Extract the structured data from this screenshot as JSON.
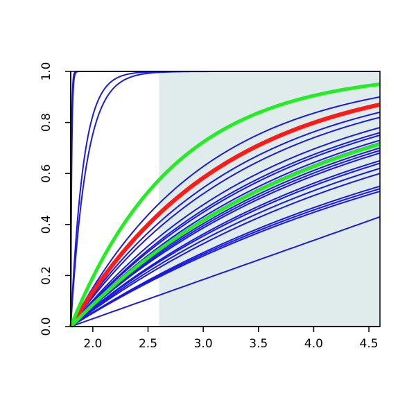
{
  "chart_data": {
    "type": "line",
    "title": "",
    "xlabel": "",
    "ylabel": "",
    "xlim": [
      1.8,
      4.6
    ],
    "ylim": [
      0,
      1
    ],
    "x_ticks": [
      2.0,
      2.5,
      3.0,
      3.5,
      4.0,
      4.5
    ],
    "y_ticks": [
      0.0,
      0.2,
      0.4,
      0.6,
      0.8,
      1.0
    ],
    "x_tick_labels": [
      "2.0",
      "2.5",
      "3.0",
      "3.5",
      "4.0",
      "4.5"
    ],
    "y_tick_labels": [
      "0.0",
      "0.2",
      "0.4",
      "0.6",
      "0.8",
      "1.0"
    ],
    "shaded_region": {
      "x_from": 2.6,
      "x_to": 4.6,
      "color": "#dfeceb"
    },
    "grid": false,
    "legend": "none",
    "colors": {
      "blue": "#1a1ae0",
      "red": "#ff1a1a",
      "green": "#22ee22",
      "shade": "#dfeceb"
    },
    "x_start": 1.8,
    "x_end": 4.6,
    "blue_curves": [
      {
        "shape": "steep",
        "y_at": {
          "1.83": 0.99,
          "4.6": 1.0
        }
      },
      {
        "shape": "steep",
        "y_at": {
          "1.84": 0.99,
          "4.6": 1.0
        }
      },
      {
        "shape": "steep",
        "y_at": {
          "2.2": 0.97,
          "4.6": 1.0
        }
      },
      {
        "shape": "steep",
        "y_at": {
          "2.3": 0.97,
          "4.6": 1.0
        }
      },
      {
        "shape": "concave",
        "y_at": {
          "4.6": 0.9
        }
      },
      {
        "shape": "concave",
        "y_at": {
          "4.6": 0.84
        }
      },
      {
        "shape": "concave",
        "y_at": {
          "4.6": 0.82
        }
      },
      {
        "shape": "concave",
        "y_at": {
          "4.6": 0.78
        }
      },
      {
        "shape": "concave",
        "y_at": {
          "4.6": 0.76
        }
      },
      {
        "shape": "concave",
        "y_at": {
          "4.6": 0.75
        }
      },
      {
        "shape": "concave",
        "y_at": {
          "4.6": 0.73
        }
      },
      {
        "shape": "concave",
        "y_at": {
          "4.6": 0.72
        }
      },
      {
        "shape": "concave",
        "y_at": {
          "4.6": 0.7
        }
      },
      {
        "shape": "concave",
        "y_at": {
          "4.6": 0.69
        }
      },
      {
        "shape": "concave",
        "y_at": {
          "4.6": 0.68
        }
      },
      {
        "shape": "concave",
        "y_at": {
          "4.6": 0.65
        }
      },
      {
        "shape": "concave",
        "y_at": {
          "4.6": 0.64
        }
      },
      {
        "shape": "concave",
        "y_at": {
          "4.6": 0.62
        }
      },
      {
        "shape": "concave",
        "y_at": {
          "4.6": 0.6
        }
      },
      {
        "shape": "concave",
        "y_at": {
          "4.6": 0.55
        }
      },
      {
        "shape": "concave",
        "y_at": {
          "4.6": 0.54
        }
      },
      {
        "shape": "concave",
        "y_at": {
          "4.6": 0.53
        }
      },
      {
        "shape": "linear",
        "y_at": {
          "4.6": 0.43
        }
      }
    ],
    "red_curve": {
      "shape": "concave",
      "y_at": {
        "4.6": 0.87
      }
    },
    "green_curves": [
      {
        "shape": "concave",
        "y_at": {
          "4.6": 0.95
        }
      },
      {
        "shape": "concave",
        "y_at": {
          "4.6": 0.715
        }
      }
    ]
  }
}
